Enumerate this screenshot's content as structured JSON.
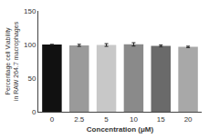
{
  "chart_data": {
    "type": "bar",
    "categories": [
      "0",
      "2.5",
      "5",
      "10",
      "15",
      "20"
    ],
    "values": [
      100.0,
      98.8,
      99.3,
      100.2,
      98.0,
      96.5
    ],
    "errors": [
      0.0,
      1.5,
      2.0,
      2.5,
      1.3,
      1.0
    ],
    "colors": [
      "#111111",
      "#9a9a9a",
      "#c8c8c8",
      "#8a8a8a",
      "#6a6a6a",
      "#a8a8a8"
    ],
    "xlabel": "Concentration (μM)",
    "ylabel": "Percentage cell Viability\nin RAW 264.7 macrophages",
    "ylim": [
      0,
      150
    ],
    "yticks": [
      0,
      50,
      100,
      150
    ],
    "grid": false
  }
}
